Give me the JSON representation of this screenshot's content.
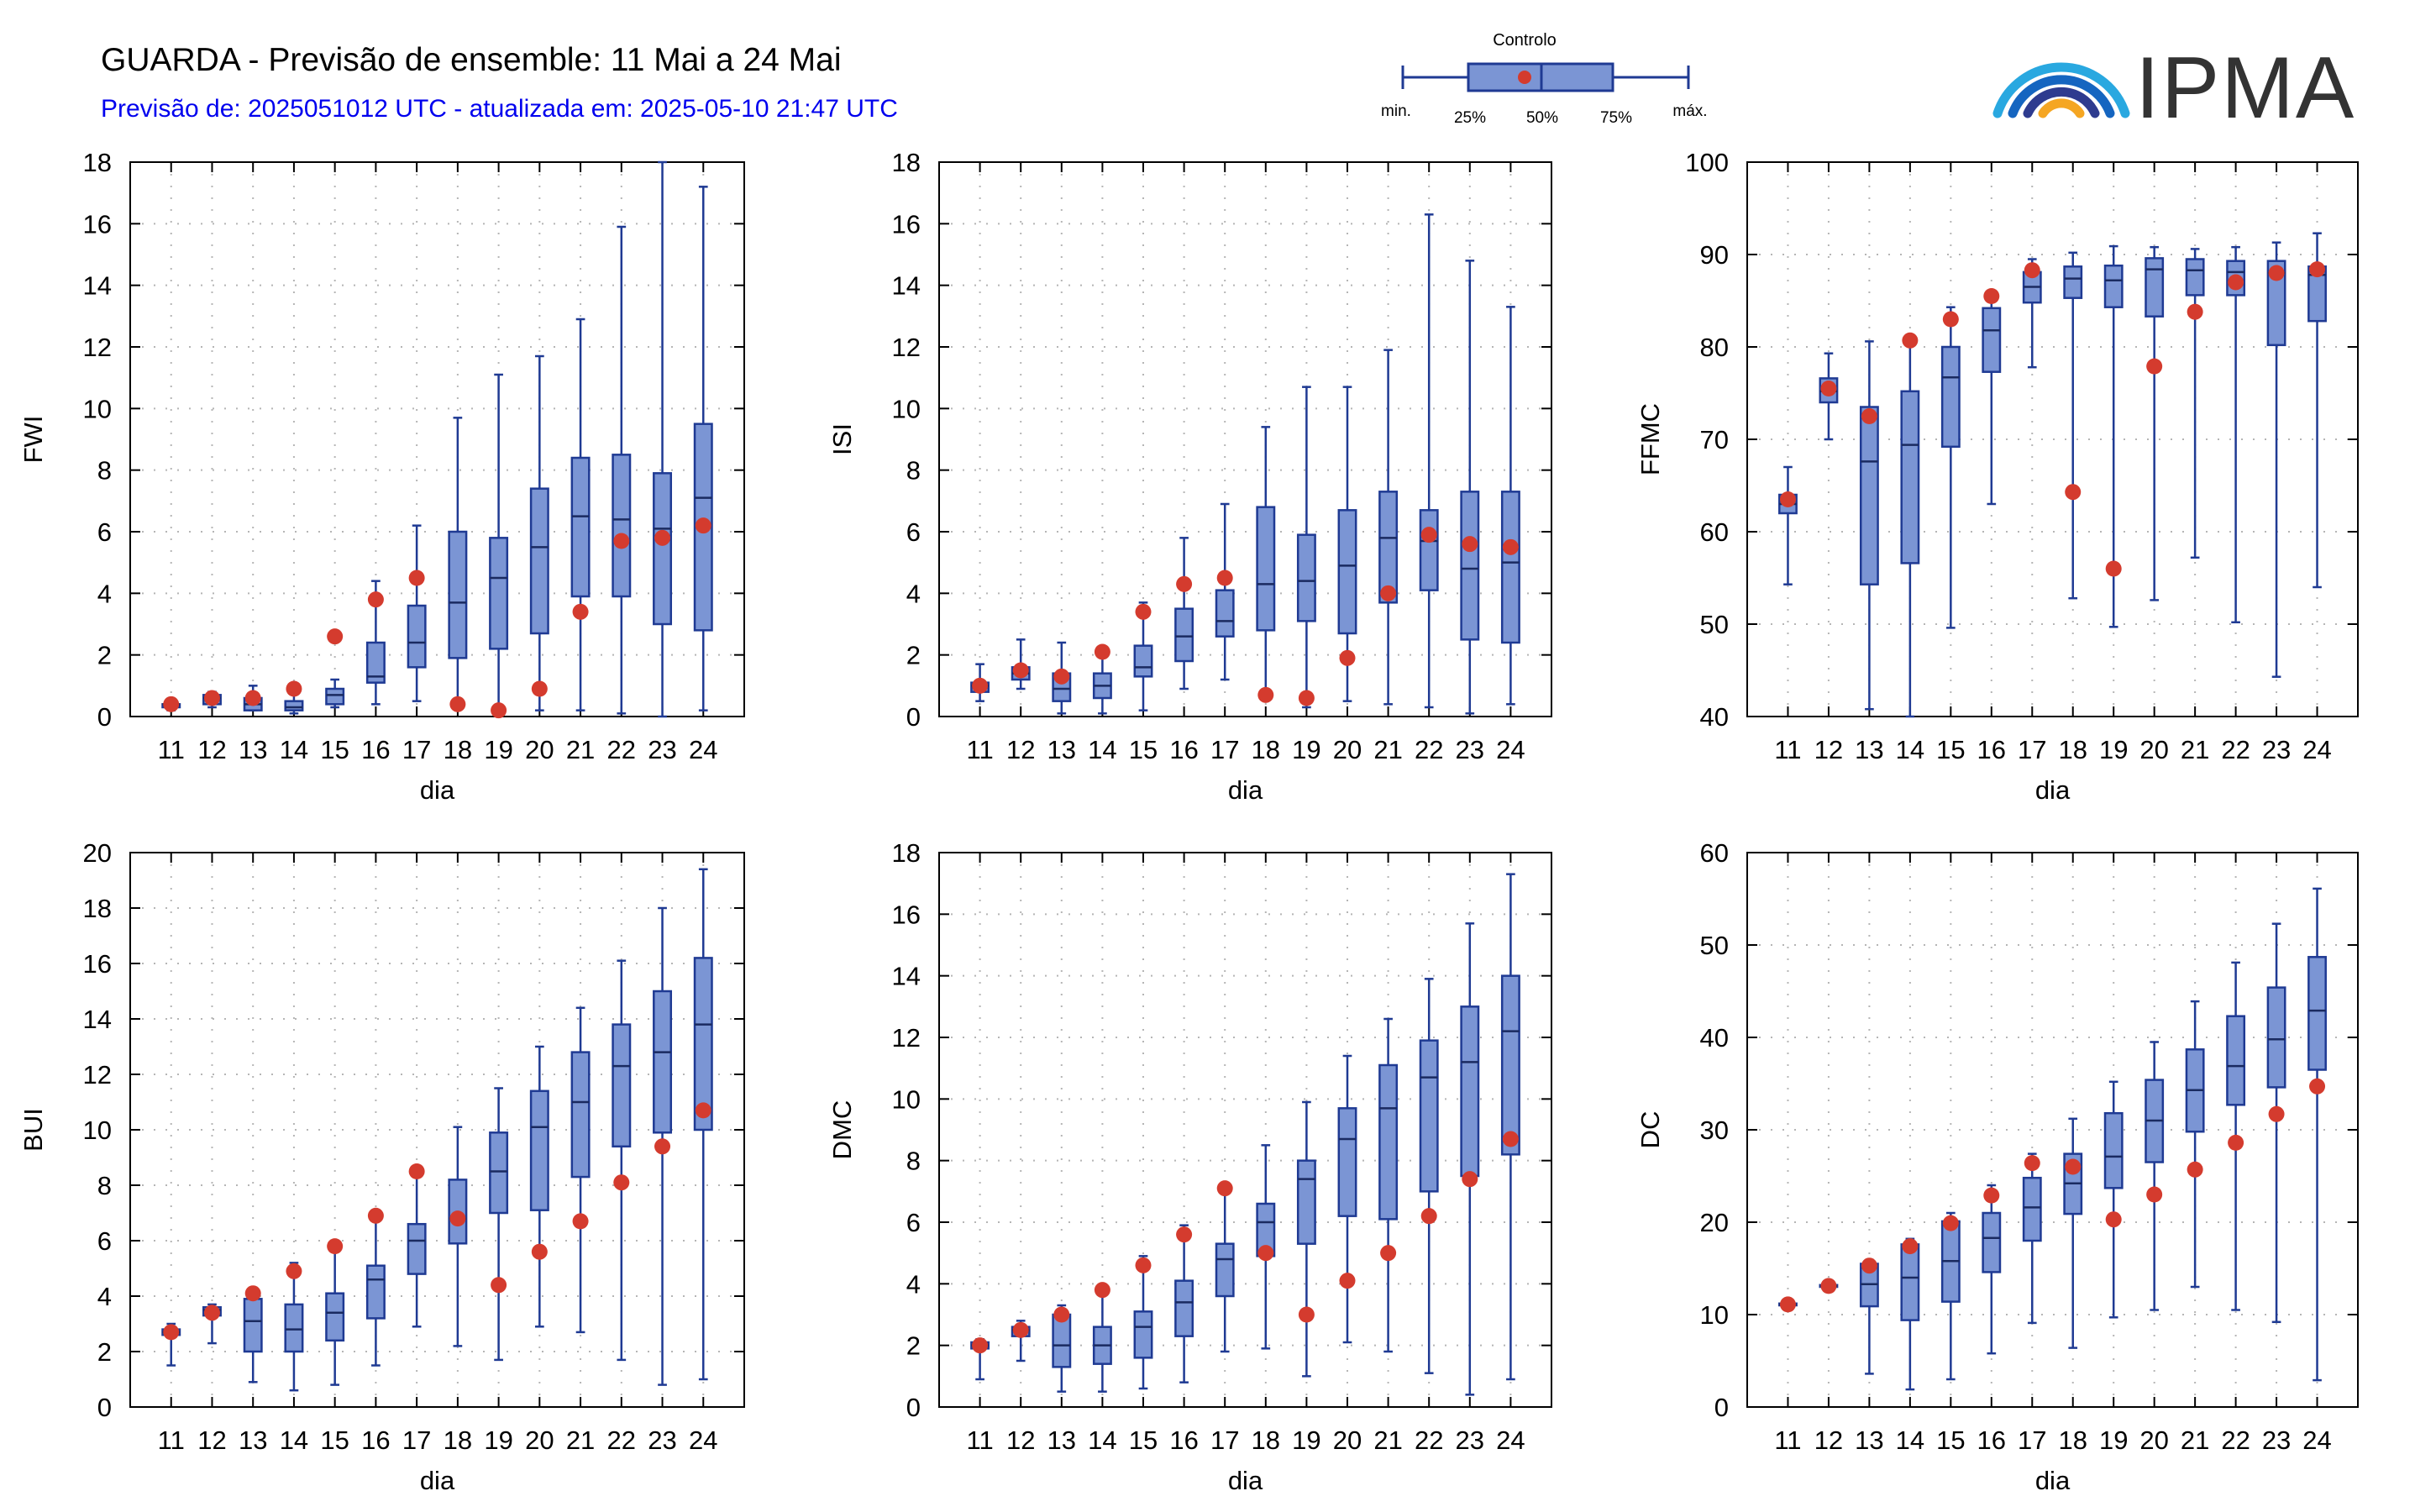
{
  "header": {
    "title": "GUARDA - Previsão de ensemble: 11 Mai a 24 Mai",
    "subtitle": "Previsão de: 2025051012 UTC - atualizada em: 2025-05-10 21:47 UTC"
  },
  "legend": {
    "control_label": "Controlo",
    "min_label": "min.",
    "p25_label": "25%",
    "p50_label": "50%",
    "p75_label": "75%",
    "max_label": "máx."
  },
  "logo": {
    "text": "IPMA"
  },
  "colors": {
    "box_fill": "#7b95d4",
    "box_stroke": "#1f3a93",
    "control": "#d43b2e",
    "grid": "#b5b5b5"
  },
  "chart_data": [
    {
      "type": "boxplot",
      "ylabel": "FWI",
      "xlabel": "dia",
      "categories": [
        "11",
        "12",
        "13",
        "14",
        "15",
        "16",
        "17",
        "18",
        "19",
        "20",
        "21",
        "22",
        "23",
        "24"
      ],
      "ylim": [
        0,
        18
      ],
      "yticks": [
        0,
        2,
        4,
        6,
        8,
        10,
        12,
        14,
        16,
        18
      ],
      "min": [
        0.2,
        0.3,
        0.2,
        0.1,
        0.3,
        0.4,
        0.5,
        0.4,
        0.2,
        0.2,
        0.2,
        0.1,
        0.0,
        0.2
      ],
      "q1": [
        0.3,
        0.4,
        0.2,
        0.2,
        0.4,
        1.1,
        1.6,
        1.9,
        2.2,
        2.7,
        3.9,
        3.9,
        3.0,
        2.8
      ],
      "median": [
        0.4,
        0.6,
        0.4,
        0.3,
        0.7,
        1.3,
        2.4,
        3.7,
        4.5,
        5.5,
        6.5,
        6.4,
        6.1,
        7.1
      ],
      "q3": [
        0.4,
        0.7,
        0.6,
        0.5,
        0.9,
        2.4,
        3.6,
        6.0,
        5.8,
        7.4,
        8.4,
        8.5,
        7.9,
        9.5
      ],
      "max": [
        0.5,
        0.8,
        1.0,
        0.8,
        1.2,
        4.4,
        6.2,
        9.7,
        11.1,
        11.7,
        12.9,
        15.9,
        18.0,
        17.2
      ],
      "control": [
        0.4,
        0.6,
        0.6,
        0.9,
        2.6,
        3.8,
        4.5,
        0.4,
        0.2,
        0.9,
        3.4,
        5.7,
        5.8,
        6.2
      ]
    },
    {
      "type": "boxplot",
      "ylabel": "ISI",
      "xlabel": "dia",
      "categories": [
        "11",
        "12",
        "13",
        "14",
        "15",
        "16",
        "17",
        "18",
        "19",
        "20",
        "21",
        "22",
        "23",
        "24"
      ],
      "ylim": [
        0,
        18
      ],
      "yticks": [
        0,
        2,
        4,
        6,
        8,
        10,
        12,
        14,
        16,
        18
      ],
      "min": [
        0.5,
        0.9,
        0.1,
        0.1,
        0.2,
        0.9,
        1.2,
        0.6,
        0.3,
        0.5,
        0.4,
        0.3,
        0.1,
        0.4
      ],
      "q1": [
        0.8,
        1.2,
        0.5,
        0.6,
        1.3,
        1.8,
        2.6,
        2.8,
        3.1,
        2.7,
        3.7,
        4.1,
        2.5,
        2.4
      ],
      "median": [
        1.0,
        1.4,
        0.9,
        1.0,
        1.6,
        2.6,
        3.1,
        4.3,
        4.4,
        4.9,
        5.8,
        5.7,
        4.8,
        5.0
      ],
      "q3": [
        1.1,
        1.6,
        1.4,
        1.4,
        2.3,
        3.5,
        4.1,
        6.8,
        5.9,
        6.7,
        7.3,
        6.7,
        7.3,
        7.3
      ],
      "max": [
        1.7,
        2.5,
        2.4,
        2.0,
        3.7,
        5.8,
        6.9,
        9.4,
        10.7,
        10.7,
        11.9,
        16.3,
        14.8,
        13.3
      ],
      "control": [
        1.0,
        1.5,
        1.3,
        2.1,
        3.4,
        4.3,
        4.5,
        0.7,
        0.6,
        1.9,
        4.0,
        5.9,
        5.6,
        5.5
      ]
    },
    {
      "type": "boxplot",
      "ylabel": "FFMC",
      "xlabel": "dia",
      "categories": [
        "11",
        "12",
        "13",
        "14",
        "15",
        "16",
        "17",
        "18",
        "19",
        "20",
        "21",
        "22",
        "23",
        "24"
      ],
      "ylim": [
        40,
        100
      ],
      "yticks": [
        40,
        50,
        60,
        70,
        80,
        90,
        100
      ],
      "min": [
        54.3,
        70.0,
        40.8,
        40.0,
        49.6,
        63.0,
        77.8,
        52.8,
        49.7,
        52.6,
        57.2,
        50.2,
        44.3,
        54.0
      ],
      "q1": [
        62.0,
        74.0,
        54.3,
        56.6,
        69.2,
        77.3,
        84.8,
        85.3,
        84.3,
        83.3,
        85.6,
        85.6,
        80.2,
        82.8
      ],
      "median": [
        63.0,
        75.2,
        67.6,
        69.4,
        76.7,
        81.8,
        86.5,
        87.4,
        87.2,
        88.4,
        88.3,
        88.1,
        88.0,
        87.8
      ],
      "q3": [
        64.0,
        76.6,
        73.5,
        75.2,
        80.0,
        84.2,
        88.1,
        88.7,
        88.8,
        89.6,
        89.5,
        89.3,
        89.3,
        88.7
      ],
      "max": [
        67.0,
        79.3,
        80.6,
        80.7,
        84.3,
        85.8,
        89.5,
        90.2,
        90.9,
        90.8,
        90.6,
        90.8,
        91.3,
        92.3
      ],
      "control": [
        63.5,
        75.5,
        72.5,
        80.7,
        83.0,
        85.5,
        88.3,
        64.3,
        56.0,
        77.9,
        83.8,
        87.0,
        88.0,
        88.4
      ]
    },
    {
      "type": "boxplot",
      "ylabel": "BUI",
      "xlabel": "dia",
      "categories": [
        "11",
        "12",
        "13",
        "14",
        "15",
        "16",
        "17",
        "18",
        "19",
        "20",
        "21",
        "22",
        "23",
        "24"
      ],
      "ylim": [
        0,
        20
      ],
      "yticks": [
        0,
        2,
        4,
        6,
        8,
        10,
        12,
        14,
        16,
        18,
        20
      ],
      "min": [
        1.5,
        2.3,
        0.9,
        0.6,
        0.8,
        1.5,
        2.9,
        2.2,
        1.7,
        2.9,
        2.7,
        1.7,
        0.8,
        1.0
      ],
      "q1": [
        2.6,
        3.3,
        2.0,
        2.0,
        2.4,
        3.2,
        4.8,
        5.9,
        7.0,
        7.1,
        8.3,
        9.4,
        9.9,
        10.0
      ],
      "median": [
        2.7,
        3.5,
        3.1,
        2.8,
        3.4,
        4.6,
        6.0,
        6.8,
        8.5,
        10.1,
        11.0,
        12.3,
        12.8,
        13.8
      ],
      "q3": [
        2.8,
        3.6,
        3.9,
        3.7,
        4.1,
        5.1,
        6.6,
        8.2,
        9.9,
        11.4,
        12.8,
        13.8,
        15.0,
        16.2
      ],
      "max": [
        3.0,
        3.7,
        4.2,
        5.2,
        6.0,
        7.1,
        8.5,
        10.1,
        11.5,
        13.0,
        14.4,
        16.1,
        18.0,
        19.4
      ],
      "control": [
        2.7,
        3.4,
        4.1,
        4.9,
        5.8,
        6.9,
        8.5,
        6.8,
        4.4,
        5.6,
        6.7,
        8.1,
        9.4,
        10.7
      ]
    },
    {
      "type": "boxplot",
      "ylabel": "DMC",
      "xlabel": "dia",
      "categories": [
        "11",
        "12",
        "13",
        "14",
        "15",
        "16",
        "17",
        "18",
        "19",
        "20",
        "21",
        "22",
        "23",
        "24"
      ],
      "ylim": [
        0,
        18
      ],
      "yticks": [
        0,
        2,
        4,
        6,
        8,
        10,
        12,
        14,
        16,
        18
      ],
      "min": [
        0.9,
        1.5,
        0.5,
        0.5,
        0.6,
        0.8,
        1.8,
        1.9,
        1.0,
        2.1,
        1.8,
        1.1,
        0.4,
        0.9
      ],
      "q1": [
        1.9,
        2.3,
        1.3,
        1.4,
        1.6,
        2.3,
        3.6,
        4.9,
        5.3,
        6.2,
        6.1,
        7.0,
        7.5,
        8.2
      ],
      "median": [
        2.0,
        2.5,
        2.0,
        2.0,
        2.6,
        3.4,
        4.8,
        6.0,
        7.4,
        8.7,
        9.7,
        10.7,
        11.2,
        12.2
      ],
      "q3": [
        2.1,
        2.6,
        3.0,
        2.6,
        3.1,
        4.1,
        5.3,
        6.6,
        8.0,
        9.7,
        11.1,
        11.9,
        13.0,
        14.0
      ],
      "max": [
        2.2,
        2.8,
        3.3,
        3.9,
        4.9,
        5.9,
        7.1,
        8.5,
        9.9,
        11.4,
        12.6,
        13.9,
        15.7,
        17.3
      ],
      "control": [
        2.0,
        2.5,
        3.0,
        3.8,
        4.6,
        5.6,
        7.1,
        5.0,
        3.0,
        4.1,
        5.0,
        6.2,
        7.4,
        8.7
      ]
    },
    {
      "type": "boxplot",
      "ylabel": "DC",
      "xlabel": "dia",
      "categories": [
        "11",
        "12",
        "13",
        "14",
        "15",
        "16",
        "17",
        "18",
        "19",
        "20",
        "21",
        "22",
        "23",
        "24"
      ],
      "ylim": [
        0,
        60
      ],
      "yticks": [
        0,
        10,
        20,
        30,
        40,
        50,
        60
      ],
      "min": [
        10.8,
        12.8,
        3.6,
        1.9,
        3.0,
        5.8,
        9.1,
        6.4,
        9.7,
        10.5,
        13.0,
        10.5,
        9.2,
        2.9
      ],
      "q1": [
        11.0,
        13.0,
        10.9,
        9.4,
        11.4,
        14.6,
        18.0,
        20.9,
        23.7,
        26.5,
        29.8,
        32.7,
        34.6,
        36.5
      ],
      "median": [
        11.1,
        13.1,
        13.3,
        14.0,
        15.8,
        18.3,
        21.6,
        24.2,
        27.1,
        31.0,
        34.3,
        36.9,
        39.8,
        42.9
      ],
      "q3": [
        11.2,
        13.2,
        15.5,
        17.6,
        20.1,
        21.0,
        24.8,
        27.4,
        31.8,
        35.4,
        38.7,
        42.3,
        45.4,
        48.7
      ],
      "max": [
        11.3,
        13.3,
        15.9,
        18.2,
        21.0,
        24.0,
        27.4,
        31.2,
        35.2,
        39.5,
        43.9,
        48.1,
        52.3,
        56.1
      ],
      "control": [
        11.1,
        13.1,
        15.3,
        17.4,
        19.9,
        22.9,
        26.4,
        26.0,
        20.3,
        23.0,
        25.7,
        28.6,
        31.7,
        34.7
      ]
    }
  ]
}
